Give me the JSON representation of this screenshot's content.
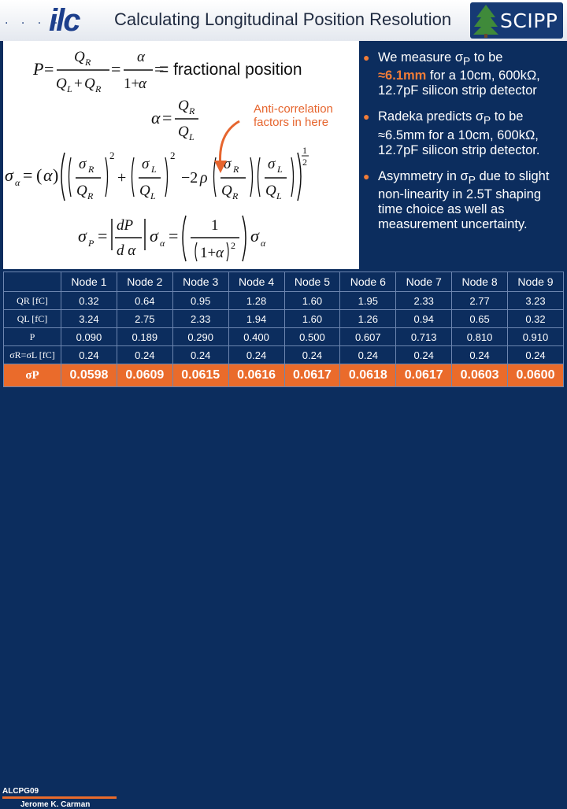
{
  "header": {
    "dots": "· · · ·",
    "logo": "ilc",
    "title": "Calculating Longitudinal Position Resolution",
    "brand": "SCIPP"
  },
  "formulas": {
    "f1_rhs": "= fractional position",
    "annotation": "Anti-correlation factors in here"
  },
  "bullets": [
    {
      "pre": "We measure σ",
      "sub": "P",
      "post": " to be",
      "highlight": "≈6.1mm",
      "rest": " for a 10cm, 600kΩ, 12.7pF silicon strip detector"
    },
    {
      "pre": "Radeka predicts σ",
      "sub": "P",
      "post": " to be",
      "highlight": "",
      "rest": "≈6.5mm for a 10cm, 600kΩ, 12.7pF silicon strip detector."
    },
    {
      "pre": "Asymmetry in σ",
      "sub": "P",
      "post": " due to slight",
      "highlight": "",
      "rest": "non-linearity in 2.5T shaping time choice as well as measurement uncertainty."
    }
  ],
  "table": {
    "headers": [
      "",
      "Node 1",
      "Node 2",
      "Node 3",
      "Node 4",
      "Node 5",
      "Node 6",
      "Node 7",
      "Node 8",
      "Node 9"
    ],
    "rows": [
      {
        "label": "QR [fC]",
        "values": [
          "0.32",
          "0.64",
          "0.95",
          "1.28",
          "1.60",
          "1.95",
          "2.33",
          "2.77",
          "3.23"
        ]
      },
      {
        "label": "QL [fC]",
        "values": [
          "3.24",
          "2.75",
          "2.33",
          "1.94",
          "1.60",
          "1.26",
          "0.94",
          "0.65",
          "0.32"
        ]
      },
      {
        "label": "P",
        "values": [
          "0.090",
          "0.189",
          "0.290",
          "0.400",
          "0.500",
          "0.607",
          "0.713",
          "0.810",
          "0.910"
        ]
      },
      {
        "label": "σR=σL [fC]",
        "values": [
          "0.24",
          "0.24",
          "0.24",
          "0.24",
          "0.24",
          "0.24",
          "0.24",
          "0.24",
          "0.24"
        ]
      },
      {
        "label": "σP",
        "values": [
          "0.0598",
          "0.0609",
          "0.0615",
          "0.0616",
          "0.0617",
          "0.0618",
          "0.0617",
          "0.0603",
          "0.0600"
        ]
      }
    ]
  },
  "footer": {
    "conference": "ALCPG09",
    "author": "Jerome K. Carman"
  },
  "colors": {
    "accent": "#ea6b2b",
    "background": "#0c2d5e"
  }
}
